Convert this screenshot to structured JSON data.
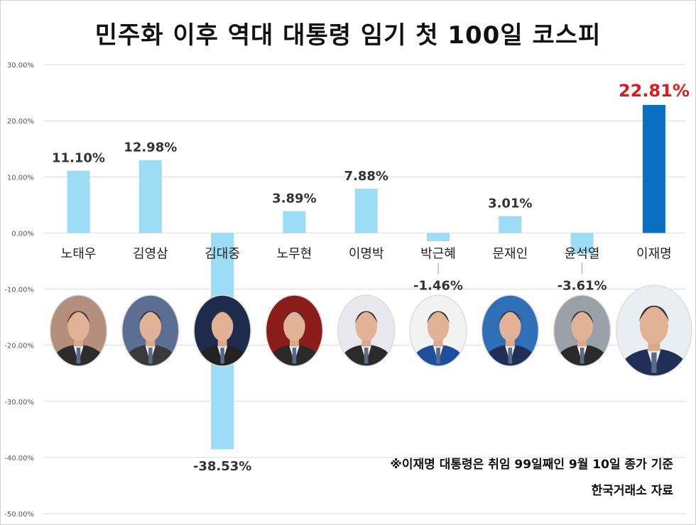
{
  "chart_data": {
    "type": "bar",
    "title": "민주화 이후 역대 대통령 임기 첫 100일 코스피",
    "categories": [
      "노태우",
      "김영삼",
      "김대중",
      "노무현",
      "이명박",
      "박근혜",
      "문재인",
      "윤석열",
      "이재명"
    ],
    "values": [
      11.1,
      12.98,
      -38.53,
      3.89,
      7.88,
      -1.46,
      3.01,
      -3.61,
      22.81
    ],
    "value_labels": [
      "11.10%",
      "12.98%",
      "-38.53%",
      "3.89%",
      "7.88%",
      "-1.46%",
      "3.01%",
      "-3.61%",
      "22.81%"
    ],
    "ylim": [
      -50,
      30
    ],
    "yticks": [
      30,
      20,
      10,
      0,
      -10,
      -20,
      -30,
      -40,
      -50
    ],
    "ytick_labels": [
      "30.00%",
      "20.00%",
      "10.00%",
      "0.00%",
      "-10.00%",
      "-20.00%",
      "-30.00%",
      "-40.00%",
      "-50.00%"
    ],
    "grid": true,
    "legend": "none",
    "bar_color": "#9ddcf5",
    "highlight_index": 8,
    "highlight_color": "#0b6fc1",
    "highlight_label_color": "#e01a1a"
  },
  "notes": {
    "line1": "※이재명 대통령은 취임 99일째인 9월 10일 종가 기준",
    "line2": "한국거래소 자료"
  },
  "portraits": [
    {
      "icon": "portrait-icon",
      "bg": "#b58f7e",
      "suit": "#2c2c2c"
    },
    {
      "icon": "portrait-icon",
      "bg": "#5d6e93",
      "suit": "#3a3a3a"
    },
    {
      "icon": "portrait-icon",
      "bg": "#1d2b4d",
      "suit": "#222"
    },
    {
      "icon": "portrait-icon",
      "bg": "#8a1d1a",
      "suit": "#2a2a2a"
    },
    {
      "icon": "portrait-icon",
      "bg": "#e8e8ee",
      "suit": "#2b2b2b"
    },
    {
      "icon": "portrait-icon",
      "bg": "#f2f2f2",
      "suit": "#1d4f9c"
    },
    {
      "icon": "portrait-icon",
      "bg": "#2f6fb8",
      "suit": "#1f2f56"
    },
    {
      "icon": "portrait-icon",
      "bg": "#9aa1a8",
      "suit": "#2a2a2a"
    },
    {
      "icon": "portrait-icon",
      "bg": "#e9eef3",
      "suit": "#1f2f55"
    }
  ]
}
